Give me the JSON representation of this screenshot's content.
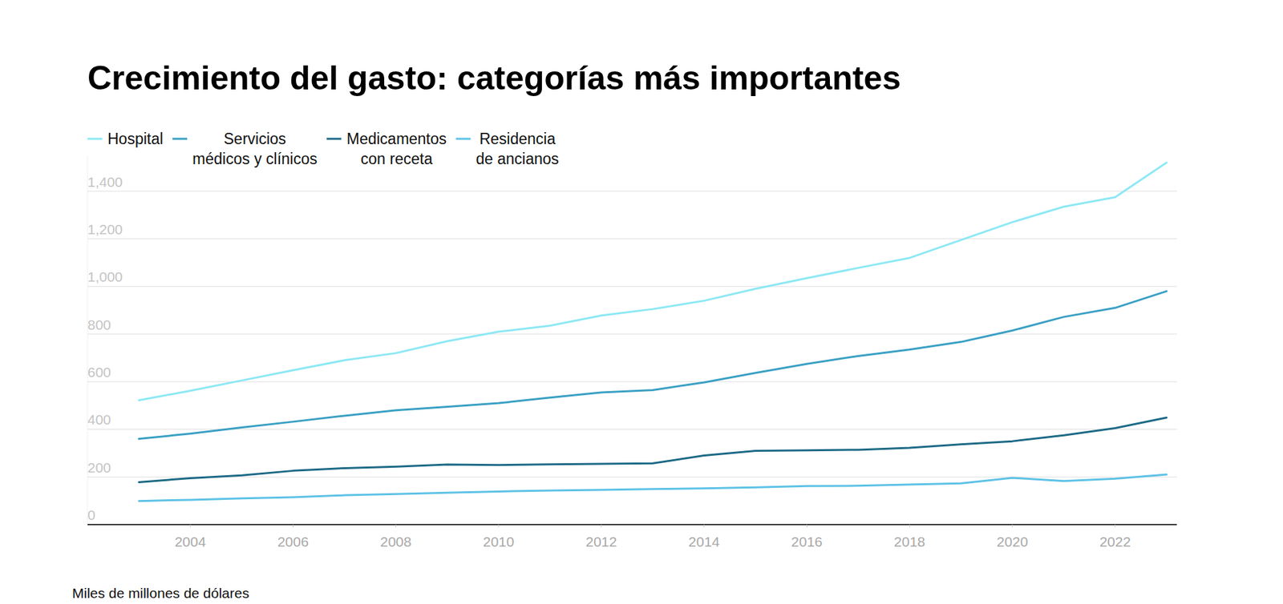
{
  "chart_data": {
    "type": "line",
    "title": "Crecimiento del gasto: categorías más importantes",
    "ylabel": "Miles de millones de dólares",
    "x": [
      2003,
      2004,
      2005,
      2006,
      2007,
      2008,
      2009,
      2010,
      2011,
      2012,
      2013,
      2014,
      2015,
      2016,
      2017,
      2018,
      2019,
      2020,
      2021,
      2022,
      2023
    ],
    "series": [
      {
        "name": "Hospital",
        "color": "#8de8f4",
        "values": [
          522,
          562,
          605,
          648,
          690,
          720,
          770,
          810,
          835,
          878,
          905,
          940,
          990,
          1035,
          1078,
          1120,
          1195,
          1270,
          1335,
          1375,
          1520
        ]
      },
      {
        "name": "Servicios médicos y clínicos",
        "color": "#3aa0c4",
        "values": [
          360,
          382,
          408,
          432,
          457,
          480,
          495,
          510,
          533,
          555,
          565,
          597,
          637,
          675,
          708,
          735,
          767,
          815,
          872,
          910,
          980
        ]
      },
      {
        "name": "Medicamentos con receta",
        "color": "#1d6a86",
        "values": [
          178,
          195,
          207,
          226,
          237,
          243,
          252,
          250,
          253,
          255,
          257,
          290,
          310,
          312,
          314,
          322,
          337,
          350,
          375,
          405,
          449
        ]
      },
      {
        "name": "Residencia de ancianos",
        "color": "#5ec2e6",
        "values": [
          99,
          104,
          110,
          115,
          123,
          128,
          134,
          139,
          143,
          146,
          149,
          152,
          156,
          162,
          163,
          168,
          173,
          196,
          183,
          193,
          210
        ]
      }
    ],
    "xlim": [
      2002,
      2023.2
    ],
    "xticks": [
      2004,
      2006,
      2008,
      2010,
      2012,
      2014,
      2016,
      2018,
      2020,
      2022
    ],
    "ylim": [
      0,
      1550
    ],
    "yticks": [
      0,
      200,
      400,
      600,
      800,
      1000,
      1200,
      {
        "value": 1400,
        "label": "1,400"
      }
    ],
    "grid": true,
    "legend": "top-left"
  }
}
